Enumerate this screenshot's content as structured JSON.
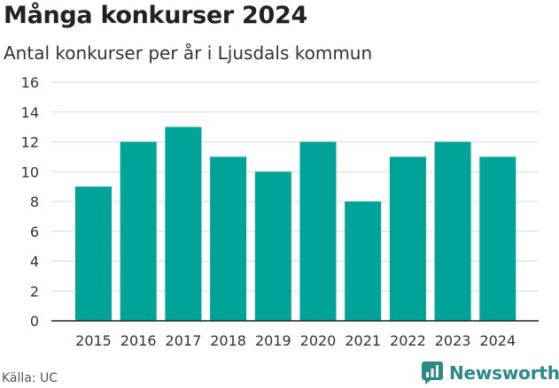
{
  "chart_data": {
    "type": "bar",
    "title": "Många konkurser 2024",
    "subtitle": "Antal konkurser per år i Ljusdals kommun",
    "categories": [
      "2015",
      "2016",
      "2017",
      "2018",
      "2019",
      "2020",
      "2021",
      "2022",
      "2023",
      "2024"
    ],
    "values": [
      9,
      12,
      13,
      11,
      10,
      12,
      8,
      11,
      12,
      11
    ],
    "ylim": [
      0,
      16
    ],
    "yticks": [
      0,
      2,
      4,
      6,
      8,
      10,
      12,
      14,
      16
    ],
    "grid": true,
    "bar_color": "#00a398"
  },
  "footer": {
    "source": "Källa: UC",
    "brand": "Newsworthy",
    "brand_color": "#2b8a85"
  }
}
